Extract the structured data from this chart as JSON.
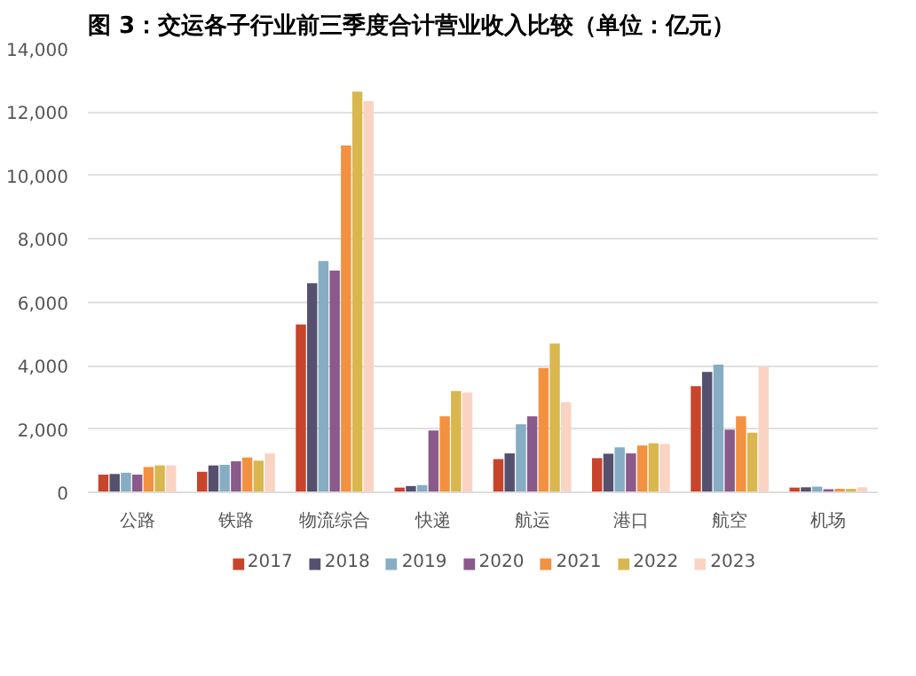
{
  "chart_data": {
    "type": "bar",
    "title": "图 3：交运各子行业前三季度合计营业收入比较（单位：亿元）",
    "categories": [
      "公路",
      "铁路",
      "物流综合",
      "快递",
      "航运",
      "港口",
      "航空",
      "机场"
    ],
    "series": [
      {
        "name": "2017",
        "color": "#c8442a",
        "values": [
          560,
          650,
          5300,
          150,
          1050,
          1080,
          3350,
          150
        ]
      },
      {
        "name": "2018",
        "color": "#56506f",
        "values": [
          580,
          850,
          6600,
          200,
          1230,
          1220,
          3800,
          160
        ]
      },
      {
        "name": "2019",
        "color": "#86adc4",
        "values": [
          620,
          870,
          7300,
          230,
          2150,
          1420,
          4030,
          180
        ]
      },
      {
        "name": "2020",
        "color": "#8a5a8a",
        "values": [
          560,
          980,
          7000,
          1950,
          2400,
          1230,
          1980,
          100
        ]
      },
      {
        "name": "2021",
        "color": "#f2913f",
        "values": [
          800,
          1100,
          10950,
          2400,
          3930,
          1480,
          2400,
          110
        ]
      },
      {
        "name": "2022",
        "color": "#d9b74e",
        "values": [
          850,
          1000,
          12650,
          3200,
          4700,
          1550,
          1880,
          110
        ]
      },
      {
        "name": "2023",
        "color": "#fbd3c3",
        "values": [
          850,
          1230,
          12350,
          3150,
          2850,
          1530,
          3950,
          160
        ]
      }
    ],
    "ylim": [
      0,
      14000
    ],
    "yticks": [
      {
        "value": 0,
        "label": "0"
      },
      {
        "value": 2000,
        "label": "2,000"
      },
      {
        "value": 4000,
        "label": "4,000"
      },
      {
        "value": 6000,
        "label": "6,000"
      },
      {
        "value": 8000,
        "label": "8,000"
      },
      {
        "value": 10000,
        "label": "10,000"
      },
      {
        "value": 12000,
        "label": "12,000"
      },
      {
        "value": 14000,
        "label": "14,000"
      }
    ],
    "grid": "y",
    "legend": "bottom"
  }
}
